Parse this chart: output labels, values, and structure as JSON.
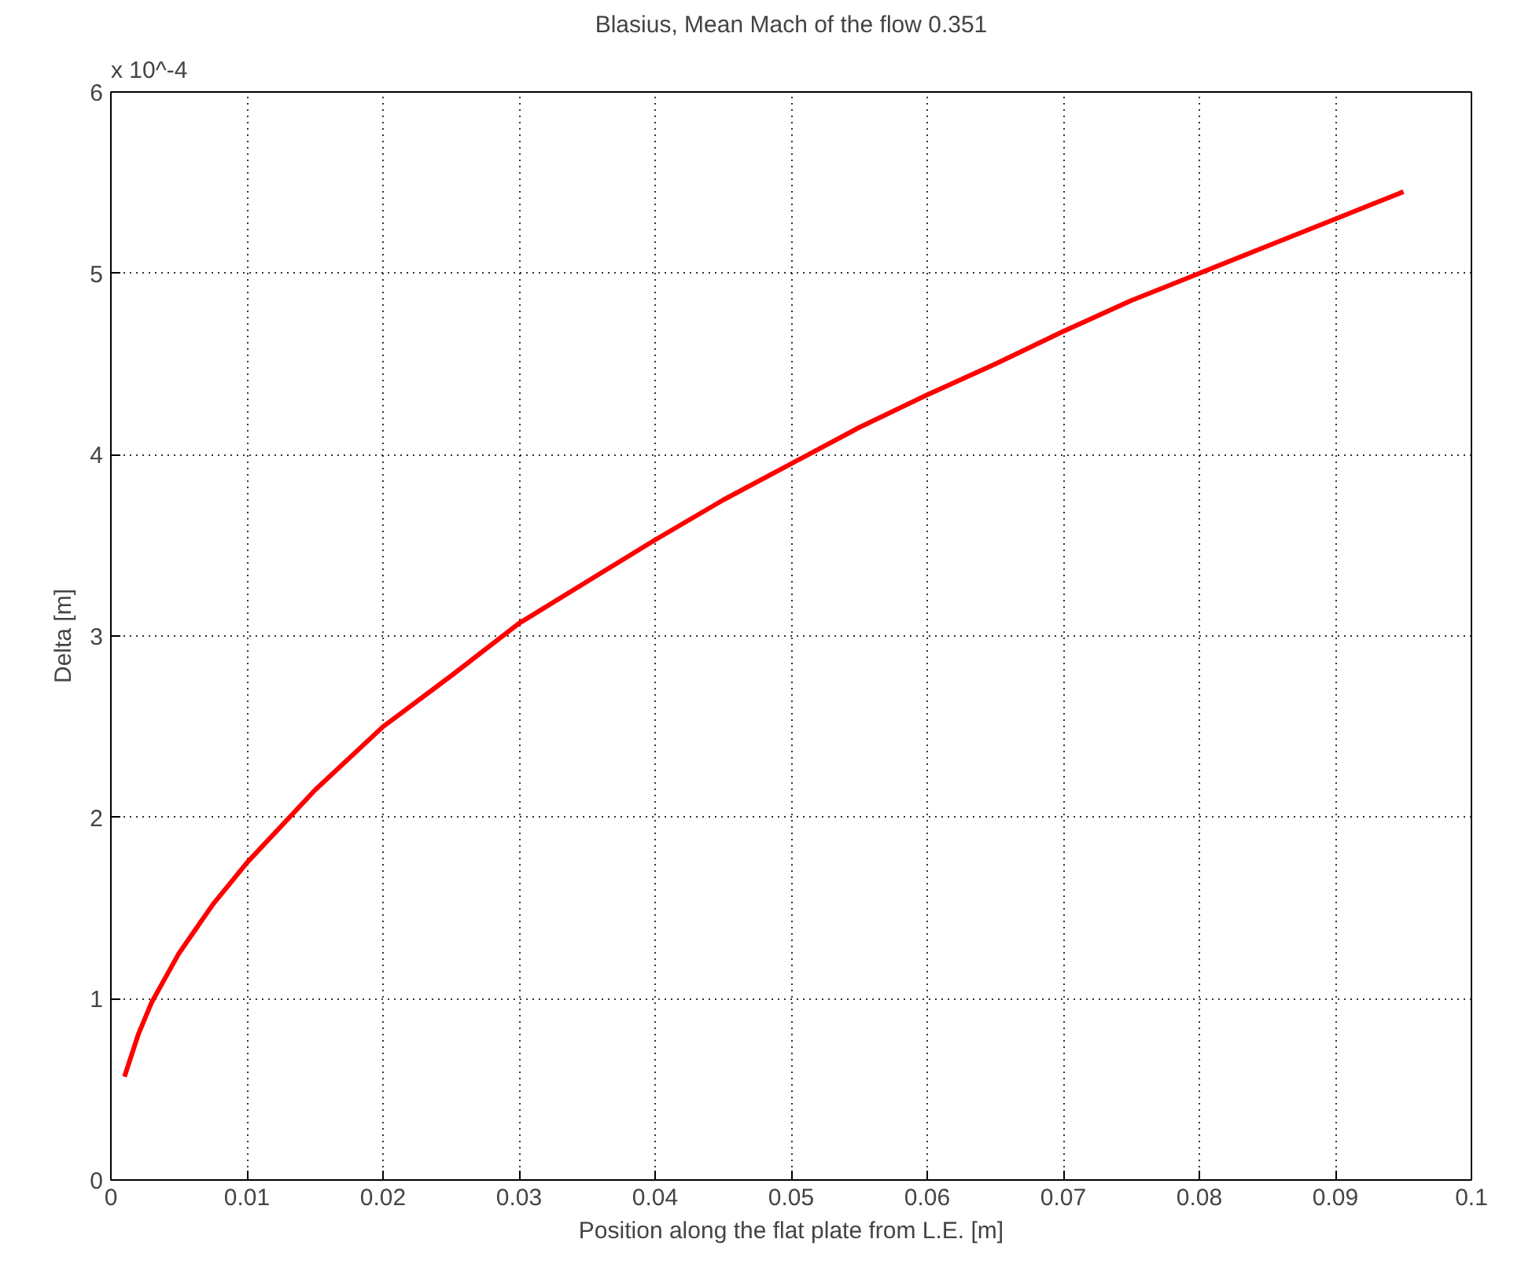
{
  "chart_data": {
    "type": "line",
    "title": "Blasius, Mean Mach of the flow 0.351",
    "xlabel": "Position along the flat plate from L.E. [m]",
    "ylabel": "Delta [m]",
    "annotations": [
      "x 10^-4"
    ],
    "x": [
      0.001,
      0.002,
      0.003,
      0.005,
      0.0075,
      0.01,
      0.015,
      0.02,
      0.025,
      0.03,
      0.035,
      0.04,
      0.045,
      0.05,
      0.055,
      0.06,
      0.065,
      0.07,
      0.075,
      0.08,
      0.085,
      0.09,
      0.095
    ],
    "series": [
      {
        "color": "#ff0000",
        "values": [
          0.57,
          0.8,
          0.98,
          1.25,
          1.52,
          1.75,
          2.15,
          2.5,
          2.78,
          3.07,
          3.3,
          3.53,
          3.75,
          3.95,
          4.15,
          4.33,
          4.5,
          4.68,
          4.85,
          5.0,
          5.15,
          5.3,
          5.45
        ]
      }
    ],
    "xlim": [
      0,
      0.1
    ],
    "ylim": [
      0,
      6
    ],
    "xticks": [
      0,
      0.01,
      0.02,
      0.03,
      0.04,
      0.05,
      0.06,
      0.07,
      0.08,
      0.09,
      0.1
    ],
    "yticks": [
      0,
      1,
      2,
      3,
      4,
      5,
      6
    ],
    "grid": true,
    "marker": "none",
    "line_style": "solid"
  }
}
